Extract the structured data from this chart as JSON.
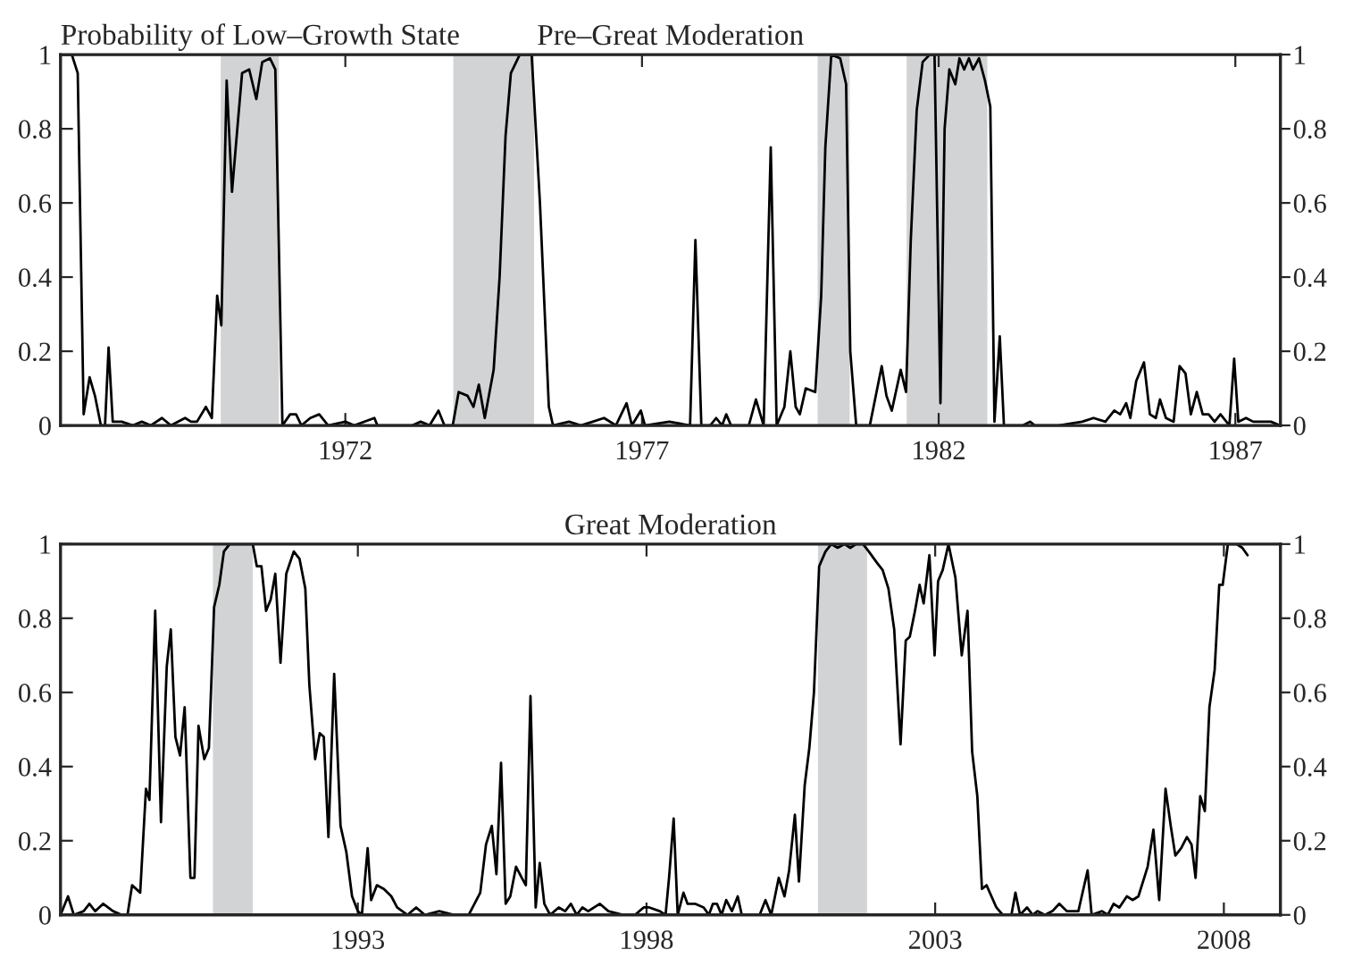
{
  "chart_data": [
    {
      "type": "line",
      "title": "Pre–Great Moderation",
      "ylabel": "Probability of Low–Growth State",
      "xlim": [
        1967.2,
        1987.76
      ],
      "xticks": [
        1972,
        1977,
        1982,
        1987
      ],
      "ylim": [
        0,
        1
      ],
      "yticks": [
        0,
        0.2,
        0.4,
        0.6,
        0.8,
        1
      ],
      "y2lim": [
        0,
        1
      ],
      "y2ticks": [
        0,
        0.2,
        0.4,
        0.6,
        0.8,
        1
      ],
      "grid": false,
      "line_style": "solid",
      "marker": "none",
      "bands": [
        {
          "axis": "x",
          "from": 1969.9,
          "to": 1970.88,
          "color": "#d1d3d4"
        },
        {
          "axis": "x",
          "from": 1973.82,
          "to": 1975.18,
          "color": "#d1d3d4"
        },
        {
          "axis": "x",
          "from": 1979.96,
          "to": 1980.5,
          "color": "#d1d3d4"
        },
        {
          "axis": "x",
          "from": 1981.46,
          "to": 1982.82,
          "color": "#d1d3d4"
        }
      ],
      "series": [
        {
          "color": "#000000",
          "x": [
            1967.2,
            1967.39,
            1967.49,
            1967.59,
            1967.69,
            1967.78,
            1967.88,
            1967.95,
            1968.01,
            1968.08,
            1968.23,
            1968.42,
            1968.57,
            1968.72,
            1968.91,
            1969.06,
            1969.3,
            1969.4,
            1969.5,
            1969.65,
            1969.75,
            1969.84,
            1969.91,
            1970.0,
            1970.09,
            1970.19,
            1970.26,
            1970.38,
            1970.5,
            1970.6,
            1970.73,
            1970.82,
            1970.94,
            1971.07,
            1971.17,
            1971.26,
            1971.41,
            1971.56,
            1971.71,
            1972.0,
            1972.15,
            1972.49,
            1972.54,
            1973.13,
            1973.27,
            1973.42,
            1973.57,
            1973.67,
            1973.81,
            1973.91,
            1974.06,
            1974.16,
            1974.25,
            1974.35,
            1974.5,
            1974.6,
            1974.7,
            1974.79,
            1974.94,
            1975.14,
            1975.28,
            1975.43,
            1975.5,
            1975.77,
            1975.97,
            1976.17,
            1976.36,
            1976.56,
            1976.74,
            1976.83,
            1976.98,
            1977.05,
            1977.46,
            1977.81,
            1977.9,
            1978.0,
            1978.15,
            1978.25,
            1978.35,
            1978.42,
            1978.5,
            1978.8,
            1978.92,
            1979.05,
            1979.17,
            1979.27,
            1979.4,
            1979.5,
            1979.59,
            1979.66,
            1979.76,
            1979.92,
            1980.02,
            1980.09,
            1980.19,
            1980.34,
            1980.44,
            1980.51,
            1980.61,
            1980.84,
            1981.04,
            1981.12,
            1981.21,
            1981.36,
            1981.45,
            1981.53,
            1981.63,
            1981.73,
            1981.85,
            1981.93,
            1982.03,
            1982.1,
            1982.18,
            1982.28,
            1982.35,
            1982.43,
            1982.51,
            1982.58,
            1982.68,
            1982.78,
            1982.87,
            1982.94,
            1983.03,
            1983.1,
            1983.42,
            1983.54,
            1983.62,
            1984.02,
            1984.42,
            1984.61,
            1984.81,
            1984.96,
            1985.06,
            1985.16,
            1985.23,
            1985.33,
            1985.46,
            1985.56,
            1985.66,
            1985.73,
            1985.83,
            1985.96,
            1986.06,
            1986.16,
            1986.25,
            1986.35,
            1986.45,
            1986.55,
            1986.65,
            1986.75,
            1986.9,
            1986.98,
            1987.05,
            1987.18,
            1987.3,
            1987.45,
            1987.6,
            1987.75
          ],
          "values": [
            1.0,
            1.0,
            0.95,
            0.03,
            0.13,
            0.08,
            0.0,
            0.0,
            0.21,
            0.01,
            0.01,
            0.0,
            0.01,
            0.0,
            0.02,
            0.0,
            0.02,
            0.01,
            0.01,
            0.05,
            0.02,
            0.35,
            0.27,
            0.93,
            0.63,
            0.82,
            0.95,
            0.96,
            0.88,
            0.98,
            0.99,
            0.96,
            0.0,
            0.03,
            0.03,
            0.0,
            0.02,
            0.03,
            0.0,
            0.01,
            0.0,
            0.02,
            0.0,
            0.0,
            0.01,
            0.0,
            0.04,
            0.0,
            0.0,
            0.09,
            0.08,
            0.05,
            0.11,
            0.02,
            0.15,
            0.4,
            0.78,
            0.95,
            1.0,
            1.0,
            0.6,
            0.05,
            0.0,
            0.01,
            0.0,
            0.01,
            0.02,
            0.0,
            0.06,
            0.0,
            0.04,
            0.0,
            0.01,
            0.0,
            0.5,
            0.0,
            0.0,
            0.02,
            0.0,
            0.03,
            0.0,
            0.0,
            0.07,
            0.0,
            0.75,
            0.0,
            0.05,
            0.2,
            0.05,
            0.03,
            0.1,
            0.09,
            0.35,
            0.75,
            1.0,
            0.99,
            0.92,
            0.2,
            0.0,
            0.0,
            0.16,
            0.08,
            0.04,
            0.15,
            0.09,
            0.5,
            0.85,
            0.98,
            1.0,
            1.0,
            0.06,
            0.8,
            0.96,
            0.92,
            0.99,
            0.96,
            0.99,
            0.96,
            0.99,
            0.93,
            0.86,
            0.01,
            0.24,
            0.0,
            0.0,
            0.01,
            0.0,
            0.0,
            0.01,
            0.02,
            0.01,
            0.04,
            0.03,
            0.06,
            0.02,
            0.12,
            0.17,
            0.03,
            0.02,
            0.07,
            0.02,
            0.01,
            0.16,
            0.14,
            0.03,
            0.09,
            0.03,
            0.03,
            0.01,
            0.03,
            0.0,
            0.18,
            0.01,
            0.02,
            0.01,
            0.01,
            0.01,
            0.0
          ]
        }
      ]
    },
    {
      "type": "line",
      "title": "Great Moderation",
      "xlim": [
        1987.85,
        2008.98
      ],
      "xticks": [
        1993,
        1998,
        2003,
        2008
      ],
      "ylim": [
        0,
        1
      ],
      "yticks": [
        0,
        0.2,
        0.4,
        0.6,
        0.8,
        1
      ],
      "y2lim": [
        0,
        1
      ],
      "y2ticks": [
        0,
        0.2,
        0.4,
        0.6,
        0.8,
        1
      ],
      "grid": false,
      "line_style": "solid",
      "marker": "none",
      "bands": [
        {
          "axis": "x",
          "from": 1990.49,
          "to": 1991.18,
          "color": "#d1d3d4"
        },
        {
          "axis": "x",
          "from": 2000.97,
          "to": 2001.82,
          "color": "#d1d3d4"
        }
      ],
      "series": [
        {
          "color": "#000000",
          "x": [
            1987.85,
            1987.98,
            1988.08,
            1988.25,
            1988.35,
            1988.45,
            1988.59,
            1988.76,
            1988.91,
            1989.01,
            1989.09,
            1989.23,
            1989.33,
            1989.39,
            1989.49,
            1989.59,
            1989.69,
            1989.76,
            1989.84,
            1989.92,
            1990.0,
            1990.1,
            1990.17,
            1990.24,
            1990.34,
            1990.42,
            1990.51,
            1990.6,
            1990.68,
            1990.78,
            1991.03,
            1991.18,
            1991.25,
            1991.33,
            1991.41,
            1991.49,
            1991.57,
            1991.66,
            1991.76,
            1991.89,
            1991.99,
            1992.09,
            1992.16,
            1992.26,
            1992.34,
            1992.41,
            1992.49,
            1992.59,
            1992.7,
            1992.8,
            1992.9,
            1993.0,
            1993.07,
            1993.17,
            1993.23,
            1993.33,
            1993.45,
            1993.58,
            1993.68,
            1993.86,
            1994.01,
            1994.16,
            1994.41,
            1994.67,
            1994.92,
            1995.02,
            1995.12,
            1995.22,
            1995.32,
            1995.4,
            1995.48,
            1995.56,
            1995.64,
            1995.74,
            1995.84,
            1995.91,
            1995.99,
            1996.08,
            1996.15,
            1996.23,
            1996.33,
            1996.48,
            1996.59,
            1996.69,
            1996.79,
            1996.89,
            1996.99,
            1997.19,
            1997.34,
            1997.6,
            1997.8,
            1997.95,
            1998.05,
            1998.23,
            1998.33,
            1998.39,
            1998.47,
            1998.54,
            1998.64,
            1998.71,
            1998.84,
            1998.99,
            1999.08,
            1999.15,
            1999.22,
            1999.3,
            1999.38,
            1999.48,
            1999.58,
            1999.65,
            1999.81,
            1999.96,
            2000.06,
            2000.16,
            2000.29,
            2000.39,
            2000.47,
            2000.57,
            2000.64,
            2000.74,
            2000.82,
            2000.9,
            2000.99,
            2001.1,
            2001.2,
            2001.31,
            2001.43,
            2001.53,
            2001.63,
            2001.75,
            2001.85,
            2001.99,
            2002.09,
            2002.19,
            2002.29,
            2002.4,
            2002.49,
            2002.56,
            2002.65,
            2002.73,
            2002.8,
            2002.9,
            2002.99,
            2003.05,
            2003.13,
            2003.23,
            2003.35,
            2003.46,
            2003.56,
            2003.64,
            2003.73,
            2003.81,
            2003.89,
            2004.06,
            2004.17,
            2004.32,
            2004.39,
            2004.47,
            2004.59,
            2004.69,
            2004.77,
            2004.9,
            2005.03,
            2005.15,
            2005.28,
            2005.48,
            2005.64,
            2005.71,
            2005.89,
            2005.99,
            2006.09,
            2006.19,
            2006.32,
            2006.42,
            2006.52,
            2006.68,
            2006.78,
            2006.88,
            2006.99,
            2007.08,
            2007.16,
            2007.26,
            2007.36,
            2007.44,
            2007.51,
            2007.59,
            2007.67,
            2007.75,
            2007.84,
            2007.92,
            2007.98,
            2008.07,
            2008.22,
            2008.32,
            2008.41
          ],
          "values": [
            0.0,
            0.05,
            0.0,
            0.01,
            0.03,
            0.01,
            0.03,
            0.01,
            0.0,
            0.0,
            0.08,
            0.06,
            0.34,
            0.31,
            0.82,
            0.25,
            0.67,
            0.77,
            0.48,
            0.43,
            0.56,
            0.1,
            0.1,
            0.51,
            0.42,
            0.45,
            0.83,
            0.89,
            0.98,
            1.0,
            1.0,
            1.0,
            0.94,
            0.94,
            0.82,
            0.85,
            0.92,
            0.68,
            0.92,
            0.98,
            0.96,
            0.88,
            0.62,
            0.42,
            0.49,
            0.48,
            0.21,
            0.65,
            0.24,
            0.17,
            0.05,
            0.01,
            0.0,
            0.18,
            0.04,
            0.08,
            0.07,
            0.05,
            0.02,
            0.0,
            0.02,
            0.0,
            0.01,
            0.0,
            0.0,
            0.03,
            0.06,
            0.19,
            0.24,
            0.11,
            0.41,
            0.03,
            0.05,
            0.13,
            0.1,
            0.08,
            0.59,
            0.02,
            0.14,
            0.03,
            0.0,
            0.02,
            0.01,
            0.03,
            0.0,
            0.02,
            0.01,
            0.03,
            0.01,
            0.0,
            0.0,
            0.02,
            0.02,
            0.01,
            0.0,
            0.1,
            0.26,
            0.0,
            0.06,
            0.03,
            0.03,
            0.02,
            0.0,
            0.03,
            0.03,
            0.0,
            0.04,
            0.01,
            0.05,
            0.0,
            0.0,
            0.0,
            0.04,
            0.0,
            0.1,
            0.05,
            0.12,
            0.27,
            0.09,
            0.35,
            0.45,
            0.6,
            0.94,
            0.98,
            1.0,
            0.99,
            1.0,
            0.99,
            1.0,
            1.0,
            0.98,
            0.95,
            0.93,
            0.88,
            0.77,
            0.46,
            0.74,
            0.75,
            0.82,
            0.89,
            0.84,
            0.97,
            0.7,
            0.9,
            0.93,
            1.0,
            0.91,
            0.7,
            0.82,
            0.44,
            0.32,
            0.07,
            0.08,
            0.02,
            0.0,
            0.0,
            0.06,
            0.0,
            0.02,
            0.0,
            0.01,
            0.0,
            0.01,
            0.03,
            0.01,
            0.01,
            0.12,
            0.0,
            0.01,
            0.0,
            0.03,
            0.02,
            0.05,
            0.04,
            0.05,
            0.13,
            0.23,
            0.04,
            0.34,
            0.24,
            0.16,
            0.18,
            0.21,
            0.19,
            0.1,
            0.32,
            0.28,
            0.56,
            0.66,
            0.89,
            0.89,
            1.0,
            1.0,
            0.99,
            0.97
          ]
        }
      ]
    }
  ]
}
